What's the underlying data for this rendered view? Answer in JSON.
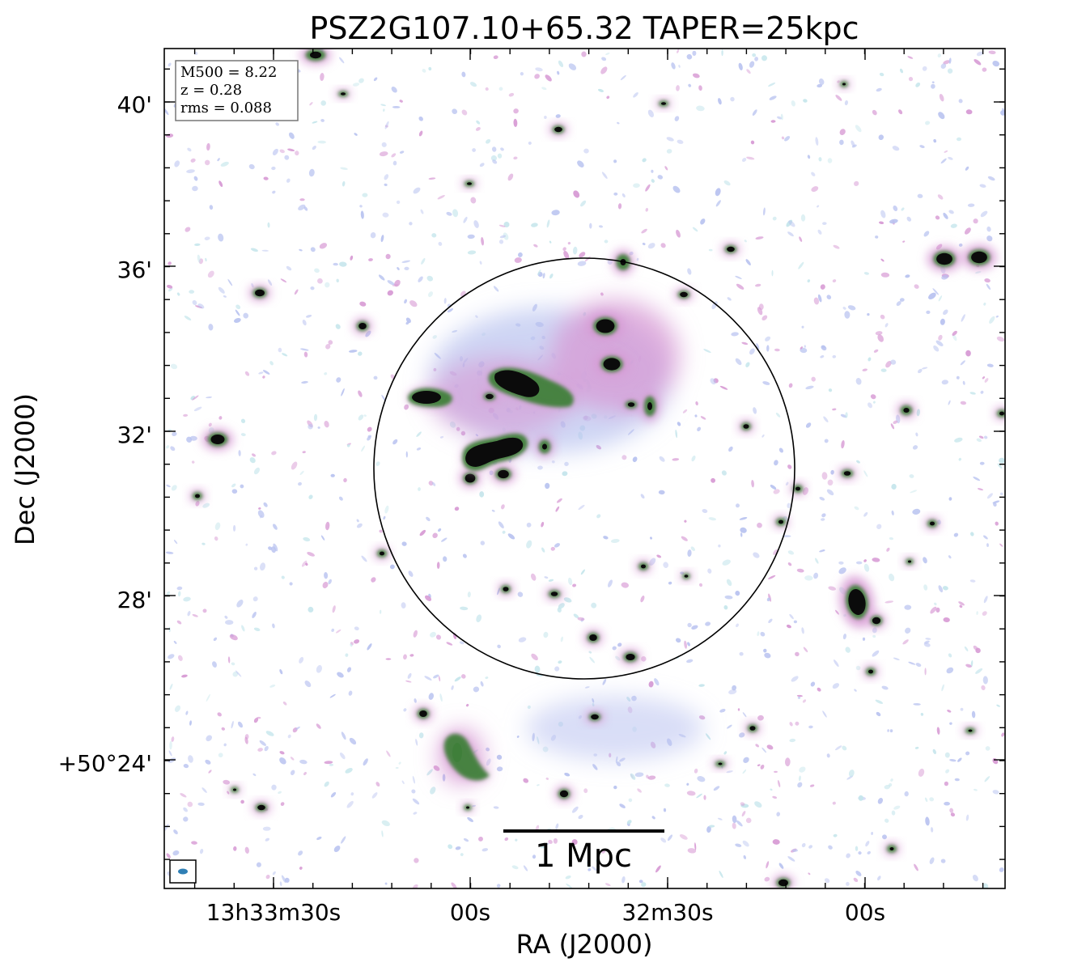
{
  "figure": {
    "title": "PSZ2G107.10+65.32 TAPER=25kpc",
    "xlabel": "RA (J2000)",
    "ylabel": "Dec (J2000)",
    "x_ticks": [
      "13h33m30s",
      "00s",
      "32m30s",
      "00s"
    ],
    "y_ticks": [
      "40'",
      "36'",
      "32'",
      "28'",
      "+50°24'"
    ],
    "info_box": [
      "M500 = 8.22",
      "z = 0.28",
      "rms = 0.088"
    ],
    "scale_bar_label": "1 Mpc",
    "colors": {
      "faint_blue": "#b9c3f0",
      "faint_cyan": "#c6e6ec",
      "pink": "#d79ad4",
      "magenta": "#b26aa8",
      "green": "#3f7f3a",
      "dark": "#0b0b0b",
      "circle": "#000000",
      "beam": "#2f7fb5"
    }
  }
}
